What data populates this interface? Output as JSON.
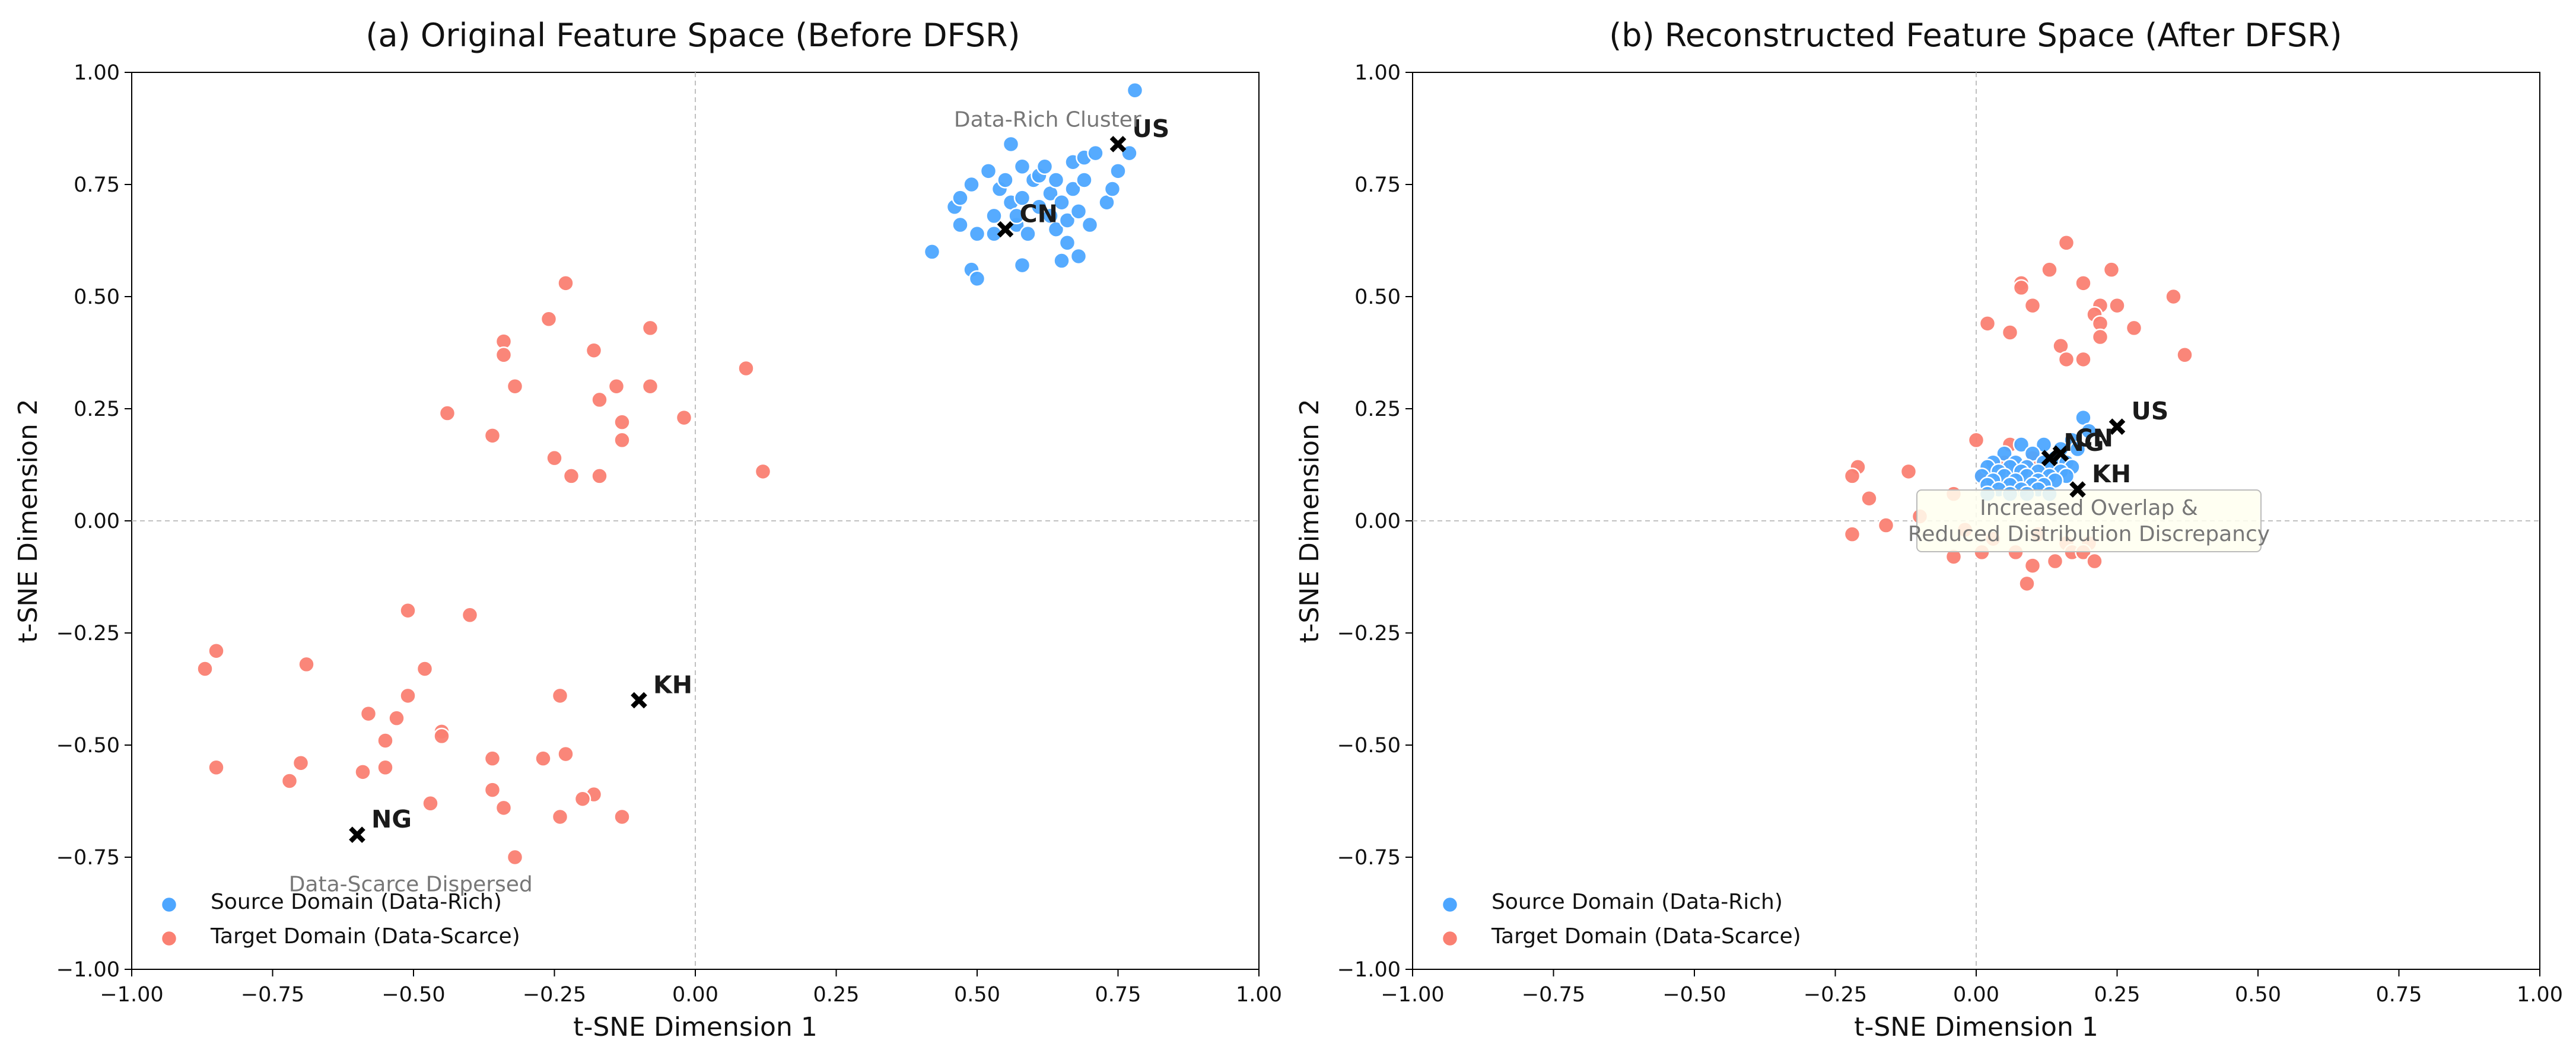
{
  "figure": {
    "colors": {
      "source": "#4da6ff",
      "target": "#fa8072",
      "centroid": "#000000",
      "annotation_text": "#777777",
      "annotation_box_fill": "#fffff0",
      "annotation_box_stroke": "#bbbbbb",
      "zero_line": "#c0c0c0"
    },
    "legend": {
      "source_label": "Source Domain (Data-Rich)",
      "target_label": "Target Domain (Data-Scarce)"
    }
  },
  "chart_data": [
    {
      "type": "scatter",
      "title": "(a) Original Feature Space (Before DFSR)",
      "xlabel": "t-SNE Dimension 1",
      "ylabel": "t-SNE Dimension 2",
      "xlim": [
        -1.0,
        1.0
      ],
      "ylim": [
        -1.0,
        1.0
      ],
      "xticks": [
        "−1.00",
        "−0.75",
        "−0.50",
        "−0.25",
        "0.00",
        "0.25",
        "0.50",
        "0.75",
        "1.00"
      ],
      "yticks": [
        "−1.00",
        "−0.75",
        "−0.50",
        "−0.25",
        "0.00",
        "0.25",
        "0.50",
        "0.75",
        "1.00"
      ],
      "zero_lines": true,
      "legend_location": "lower-left",
      "series": [
        {
          "name": "Source Domain (Data-Rich)",
          "points": [
            [
              0.42,
              0.6
            ],
            [
              0.46,
              0.7
            ],
            [
              0.47,
              0.72
            ],
            [
              0.47,
              0.66
            ],
            [
              0.49,
              0.56
            ],
            [
              0.49,
              0.75
            ],
            [
              0.5,
              0.54
            ],
            [
              0.5,
              0.64
            ],
            [
              0.52,
              0.78
            ],
            [
              0.53,
              0.64
            ],
            [
              0.53,
              0.68
            ],
            [
              0.54,
              0.74
            ],
            [
              0.55,
              0.76
            ],
            [
              0.56,
              0.84
            ],
            [
              0.56,
              0.71
            ],
            [
              0.57,
              0.66
            ],
            [
              0.57,
              0.68
            ],
            [
              0.58,
              0.79
            ],
            [
              0.58,
              0.57
            ],
            [
              0.58,
              0.72
            ],
            [
              0.59,
              0.64
            ],
            [
              0.6,
              0.76
            ],
            [
              0.61,
              0.7
            ],
            [
              0.61,
              0.77
            ],
            [
              0.62,
              0.79
            ],
            [
              0.63,
              0.68
            ],
            [
              0.63,
              0.73
            ],
            [
              0.64,
              0.65
            ],
            [
              0.64,
              0.76
            ],
            [
              0.65,
              0.58
            ],
            [
              0.65,
              0.71
            ],
            [
              0.66,
              0.62
            ],
            [
              0.66,
              0.67
            ],
            [
              0.67,
              0.74
            ],
            [
              0.67,
              0.8
            ],
            [
              0.68,
              0.59
            ],
            [
              0.68,
              0.69
            ],
            [
              0.69,
              0.76
            ],
            [
              0.69,
              0.81
            ],
            [
              0.7,
              0.66
            ],
            [
              0.71,
              0.82
            ],
            [
              0.73,
              0.71
            ],
            [
              0.74,
              0.74
            ],
            [
              0.75,
              0.78
            ],
            [
              0.77,
              0.82
            ],
            [
              0.78,
              0.96
            ]
          ]
        },
        {
          "name": "Target Domain (Data-Scarce)",
          "points": [
            [
              -0.23,
              0.53
            ],
            [
              -0.26,
              0.45
            ],
            [
              -0.08,
              0.43
            ],
            [
              -0.34,
              0.4
            ],
            [
              -0.34,
              0.37
            ],
            [
              -0.18,
              0.38
            ],
            [
              -0.32,
              0.3
            ],
            [
              -0.14,
              0.3
            ],
            [
              -0.08,
              0.3
            ],
            [
              -0.17,
              0.27
            ],
            [
              -0.44,
              0.24
            ],
            [
              -0.13,
              0.22
            ],
            [
              -0.36,
              0.19
            ],
            [
              -0.13,
              0.18
            ],
            [
              -0.02,
              0.23
            ],
            [
              0.09,
              0.34
            ],
            [
              0.12,
              0.11
            ],
            [
              -0.25,
              0.14
            ],
            [
              -0.22,
              0.1
            ],
            [
              -0.17,
              0.1
            ],
            [
              -0.51,
              -0.2
            ],
            [
              -0.4,
              -0.21
            ],
            [
              -0.85,
              -0.29
            ],
            [
              -0.87,
              -0.33
            ],
            [
              -0.69,
              -0.32
            ],
            [
              -0.48,
              -0.33
            ],
            [
              -0.51,
              -0.39
            ],
            [
              -0.24,
              -0.39
            ],
            [
              -0.58,
              -0.43
            ],
            [
              -0.53,
              -0.44
            ],
            [
              -0.45,
              -0.47
            ],
            [
              -0.45,
              -0.48
            ],
            [
              -0.55,
              -0.49
            ],
            [
              -0.23,
              -0.52
            ],
            [
              -0.27,
              -0.53
            ],
            [
              -0.36,
              -0.53
            ],
            [
              -0.85,
              -0.55
            ],
            [
              -0.7,
              -0.54
            ],
            [
              -0.55,
              -0.55
            ],
            [
              -0.59,
              -0.56
            ],
            [
              -0.72,
              -0.58
            ],
            [
              -0.36,
              -0.6
            ],
            [
              -0.18,
              -0.61
            ],
            [
              -0.2,
              -0.62
            ],
            [
              -0.47,
              -0.63
            ],
            [
              -0.34,
              -0.64
            ],
            [
              -0.24,
              -0.66
            ],
            [
              -0.13,
              -0.66
            ],
            [
              -0.32,
              -0.75
            ]
          ]
        }
      ],
      "centroids": [
        {
          "label": "US",
          "x": 0.75,
          "y": 0.84
        },
        {
          "label": "CN",
          "x": 0.55,
          "y": 0.65
        },
        {
          "label": "KH",
          "x": -0.1,
          "y": -0.4
        },
        {
          "label": "NG",
          "x": -0.6,
          "y": -0.7
        }
      ],
      "annotations": [
        {
          "text": "Data-Rich Cluster",
          "x": 0.625,
          "y": 0.895
        },
        {
          "text": "Data-Scarce Dispersed",
          "x": -0.505,
          "y": -0.81
        }
      ]
    },
    {
      "type": "scatter",
      "title": "(b) Reconstructed Feature Space (After DFSR)",
      "xlabel": "t-SNE Dimension 1",
      "ylabel": "t-SNE Dimension 2",
      "xlim": [
        -1.0,
        1.0
      ],
      "ylim": [
        -1.0,
        1.0
      ],
      "xticks": [
        "−1.00",
        "−0.75",
        "−0.50",
        "−0.25",
        "0.00",
        "0.25",
        "0.50",
        "0.75",
        "1.00"
      ],
      "yticks": [
        "−1.00",
        "−0.75",
        "−0.50",
        "−0.25",
        "0.00",
        "0.25",
        "0.50",
        "0.75",
        "1.00"
      ],
      "zero_lines": true,
      "legend_location": "lower-left",
      "series": [
        {
          "name": "Source Domain (Data-Rich)",
          "points": [
            [
              0.19,
              0.23
            ],
            [
              0.2,
              0.2
            ],
            [
              0.17,
              0.18
            ],
            [
              0.08,
              0.17
            ],
            [
              0.12,
              0.17
            ],
            [
              0.15,
              0.16
            ],
            [
              0.18,
              0.16
            ],
            [
              0.05,
              0.15
            ],
            [
              0.1,
              0.15
            ],
            [
              0.14,
              0.14
            ],
            [
              0.03,
              0.13
            ],
            [
              0.07,
              0.13
            ],
            [
              0.12,
              0.13
            ],
            [
              0.16,
              0.13
            ],
            [
              0.02,
              0.12
            ],
            [
              0.06,
              0.12
            ],
            [
              0.09,
              0.12
            ],
            [
              0.13,
              0.12
            ],
            [
              0.17,
              0.12
            ],
            [
              0.04,
              0.11
            ],
            [
              0.08,
              0.11
            ],
            [
              0.11,
              0.11
            ],
            [
              0.15,
              0.11
            ],
            [
              0.01,
              0.1
            ],
            [
              0.05,
              0.1
            ],
            [
              0.09,
              0.1
            ],
            [
              0.13,
              0.1
            ],
            [
              0.16,
              0.1
            ],
            [
              0.03,
              0.09
            ],
            [
              0.07,
              0.09
            ],
            [
              0.11,
              0.09
            ],
            [
              0.14,
              0.09
            ],
            [
              0.02,
              0.08
            ],
            [
              0.06,
              0.08
            ],
            [
              0.1,
              0.08
            ],
            [
              0.12,
              0.08
            ],
            [
              0.04,
              0.07
            ],
            [
              0.08,
              0.07
            ],
            [
              0.11,
              0.07
            ],
            [
              0.02,
              0.06
            ],
            [
              0.06,
              0.06
            ],
            [
              0.09,
              0.06
            ],
            [
              0.13,
              0.06
            ]
          ]
        },
        {
          "name": "Target Domain (Data-Scarce)",
          "points": [
            [
              0.16,
              0.62
            ],
            [
              0.24,
              0.56
            ],
            [
              0.13,
              0.56
            ],
            [
              0.08,
              0.53
            ],
            [
              0.19,
              0.53
            ],
            [
              0.08,
              0.52
            ],
            [
              0.35,
              0.5
            ],
            [
              0.22,
              0.48
            ],
            [
              0.25,
              0.48
            ],
            [
              0.1,
              0.48
            ],
            [
              0.21,
              0.46
            ],
            [
              0.22,
              0.44
            ],
            [
              0.02,
              0.44
            ],
            [
              0.28,
              0.43
            ],
            [
              0.06,
              0.42
            ],
            [
              0.22,
              0.41
            ],
            [
              0.15,
              0.39
            ],
            [
              0.37,
              0.37
            ],
            [
              0.16,
              0.36
            ],
            [
              0.19,
              0.36
            ],
            [
              -0.21,
              0.12
            ],
            [
              -0.22,
              0.1
            ],
            [
              -0.12,
              0.11
            ],
            [
              0.0,
              0.18
            ],
            [
              0.06,
              0.17
            ],
            [
              0.1,
              0.14
            ],
            [
              0.01,
              0.1
            ],
            [
              0.05,
              0.13
            ],
            [
              -0.19,
              0.05
            ],
            [
              -0.04,
              0.06
            ],
            [
              -0.1,
              0.01
            ],
            [
              -0.16,
              -0.01
            ],
            [
              -0.22,
              -0.03
            ],
            [
              -0.02,
              -0.02
            ],
            [
              0.03,
              -0.04
            ],
            [
              0.11,
              -0.03
            ],
            [
              0.16,
              -0.05
            ],
            [
              0.2,
              -0.05
            ],
            [
              -0.04,
              -0.08
            ],
            [
              0.01,
              -0.07
            ],
            [
              0.07,
              -0.07
            ],
            [
              0.14,
              -0.09
            ],
            [
              0.17,
              -0.07
            ],
            [
              0.19,
              -0.07
            ],
            [
              0.1,
              -0.1
            ],
            [
              0.21,
              -0.09
            ],
            [
              0.09,
              -0.14
            ]
          ]
        }
      ],
      "centroids": [
        {
          "label": "US",
          "x": 0.25,
          "y": 0.21
        },
        {
          "label": "CN",
          "x": 0.15,
          "y": 0.15
        },
        {
          "label": "NG",
          "x": 0.13,
          "y": 0.14
        },
        {
          "label": "KH",
          "x": 0.18,
          "y": 0.07
        }
      ],
      "annotations": [],
      "boxed_annotation": {
        "lines": [
          "Increased Overlap &",
          "Reduced Distribution Discrepancy"
        ],
        "x": 0.2,
        "y": 0.0
      }
    }
  ]
}
